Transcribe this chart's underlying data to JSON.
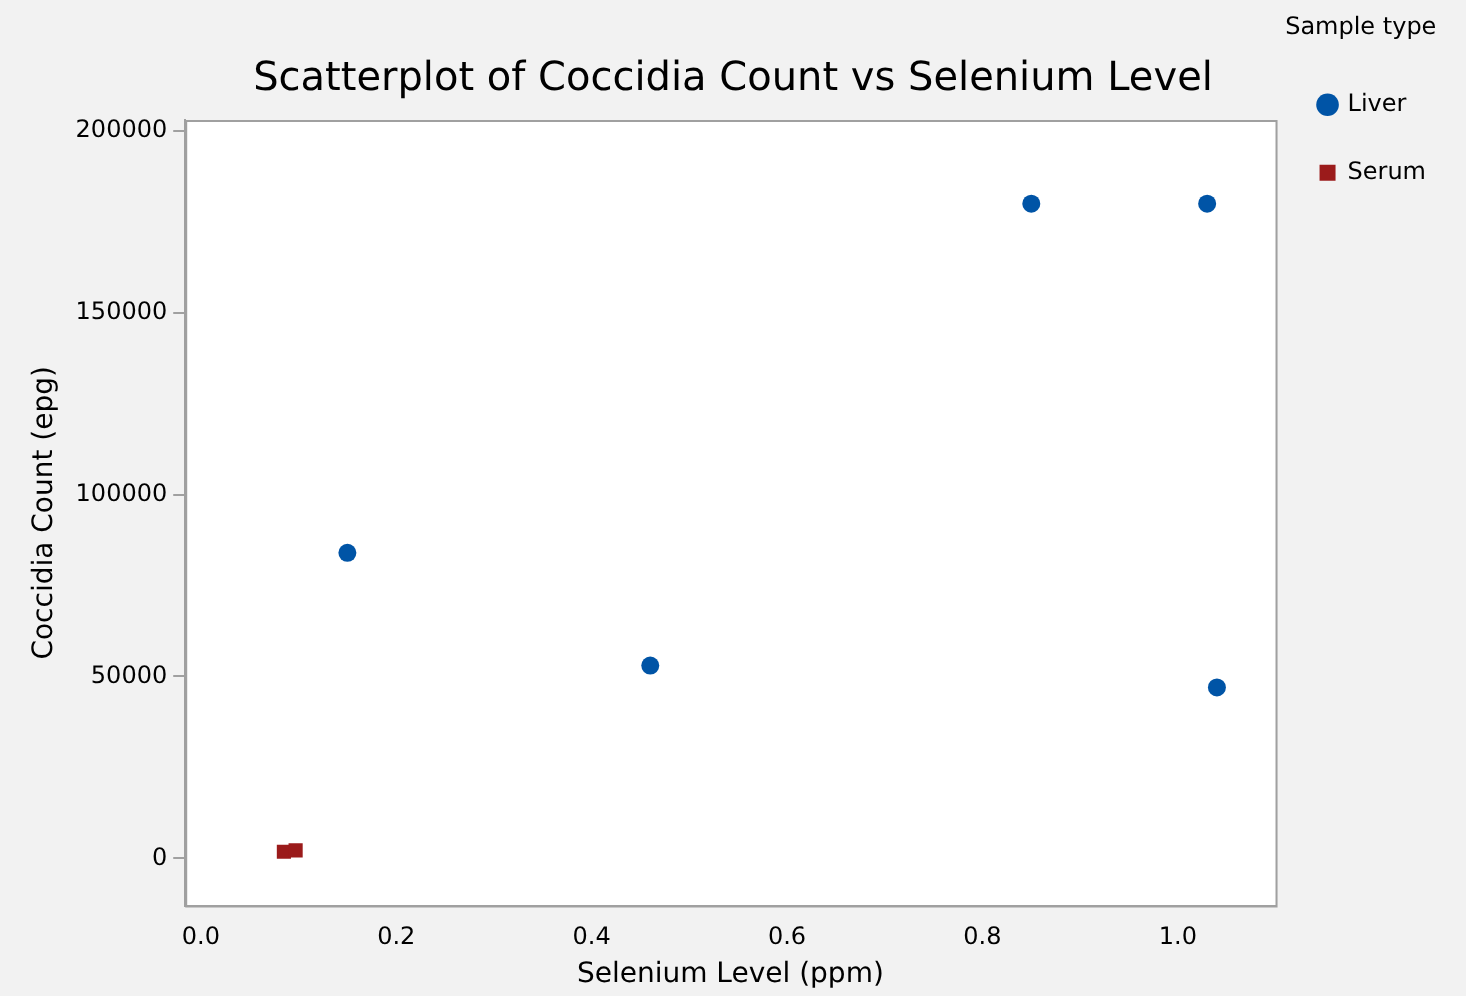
{
  "chart_data": {
    "type": "scatter",
    "title": "Scatterplot of Coccidia Count vs Selenium Level",
    "xlabel": "Selenium Level (ppm)",
    "ylabel": "Coccidia Count (epg)",
    "legend_title": "Sample type",
    "legend": "right",
    "grid": false,
    "xlim": [
      -0.016,
      1.1
    ],
    "xticks": [
      {
        "value": 0,
        "label": "0.0"
      },
      {
        "value": 0.2,
        "label": "0.2"
      },
      {
        "value": 0.4,
        "label": "0.4"
      },
      {
        "value": 0.6,
        "label": "0.6"
      },
      {
        "value": 0.8,
        "label": "0.8"
      },
      {
        "value": 1,
        "label": "1.0"
      }
    ],
    "ylim": [
      -13000,
      203000
    ],
    "yticks": [
      0,
      50000,
      100000,
      150000,
      200000
    ],
    "series": [
      {
        "name": "Liver",
        "color": "#0054a6",
        "marker": "circle",
        "x": [
          0.15,
          0.46,
          0.85,
          1.03,
          1.04
        ],
        "values": [
          84000,
          53000,
          180000,
          180000,
          47000
        ]
      },
      {
        "name": "Serum",
        "color": "#9b1b1b",
        "marker": "square",
        "x": [
          0.085,
          0.097
        ],
        "values": [
          1800,
          2200
        ]
      }
    ]
  }
}
